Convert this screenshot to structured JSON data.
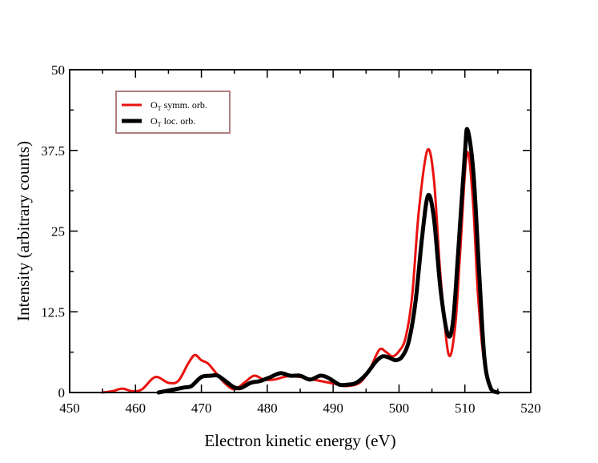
{
  "chart_data": {
    "type": "line",
    "title": "",
    "xlabel": "Electron kinetic energy (eV)",
    "ylabel": "Intensity (arbitrary counts)",
    "xlim": [
      450,
      520
    ],
    "ylim": [
      0,
      50
    ],
    "x_ticks": [
      450,
      460,
      470,
      480,
      490,
      500,
      510,
      520
    ],
    "x_tick_labels": [
      "450",
      "460",
      "470",
      "480",
      "490",
      "500",
      "510",
      "520"
    ],
    "y_ticks": [
      0,
      12.5,
      25,
      37.5,
      50
    ],
    "y_tick_labels": [
      "0",
      "12.5",
      "25",
      "37.5",
      "50"
    ],
    "grid": false,
    "legend_position": "top-left",
    "series": [
      {
        "name": "O_T symm. orb.",
        "legend_main": "O",
        "legend_sub": "T",
        "legend_rest": " symm. orb.",
        "color": "#e8120f",
        "x": [
          455,
          456.5,
          458,
          459.5,
          461,
          463,
          465,
          466.5,
          468,
          469,
          470,
          471,
          472,
          473.5,
          475,
          476.5,
          478,
          479.5,
          481,
          483,
          485,
          487,
          489,
          490.5,
          492,
          494,
          495.5,
          497,
          498,
          499,
          500,
          501,
          502,
          503,
          504.3,
          505.3,
          506.3,
          507.5,
          508.5,
          509.3,
          510.3,
          511.2,
          512,
          513,
          514,
          515
        ],
        "y": [
          0,
          0.2,
          0.6,
          0.2,
          0.5,
          2.4,
          1.5,
          1.8,
          4.5,
          5.8,
          5.0,
          4.5,
          3.3,
          1.5,
          0.5,
          1.5,
          2.6,
          2.0,
          2.0,
          2.5,
          2.4,
          2.0,
          1.6,
          1.3,
          1.0,
          1.5,
          3.5,
          6.6,
          6.3,
          5.6,
          6.4,
          8.5,
          15,
          28,
          37.5,
          33,
          18,
          6,
          10,
          22,
          37.0,
          30,
          15,
          4,
          0.5,
          0
        ]
      },
      {
        "name": "O_T loc. orb.",
        "legend_main": "O",
        "legend_sub": "T",
        "legend_rest": " loc. orb.",
        "color": "#000000",
        "x": [
          463.5,
          465,
          466.5,
          467.5,
          468.5,
          470,
          471.5,
          472.5,
          474,
          475,
          476,
          477.5,
          479,
          480.5,
          482,
          483.5,
          485,
          486.5,
          488,
          489,
          490,
          491,
          492,
          493.5,
          495,
          496.5,
          497.5,
          498.5,
          499.5,
          500.5,
          501.5,
          502.5,
          503.5,
          504.4,
          505.3,
          506.3,
          507.4,
          508.2,
          509,
          510,
          510.4,
          511.3,
          512.2,
          513,
          514,
          515
        ],
        "y": [
          0,
          0.3,
          0.6,
          0.8,
          1.0,
          2.4,
          2.6,
          2.6,
          1.5,
          0.8,
          0.7,
          1.5,
          1.8,
          2.4,
          3.0,
          2.6,
          2.6,
          2.0,
          2.6,
          2.4,
          1.8,
          1.2,
          1.2,
          1.5,
          2.8,
          4.8,
          5.6,
          5.4,
          5.0,
          5.6,
          8.0,
          14,
          24,
          30.5,
          27,
          16,
          9.0,
          11,
          22,
          37,
          40.7,
          34,
          18,
          5,
          0.5,
          0
        ]
      }
    ]
  }
}
